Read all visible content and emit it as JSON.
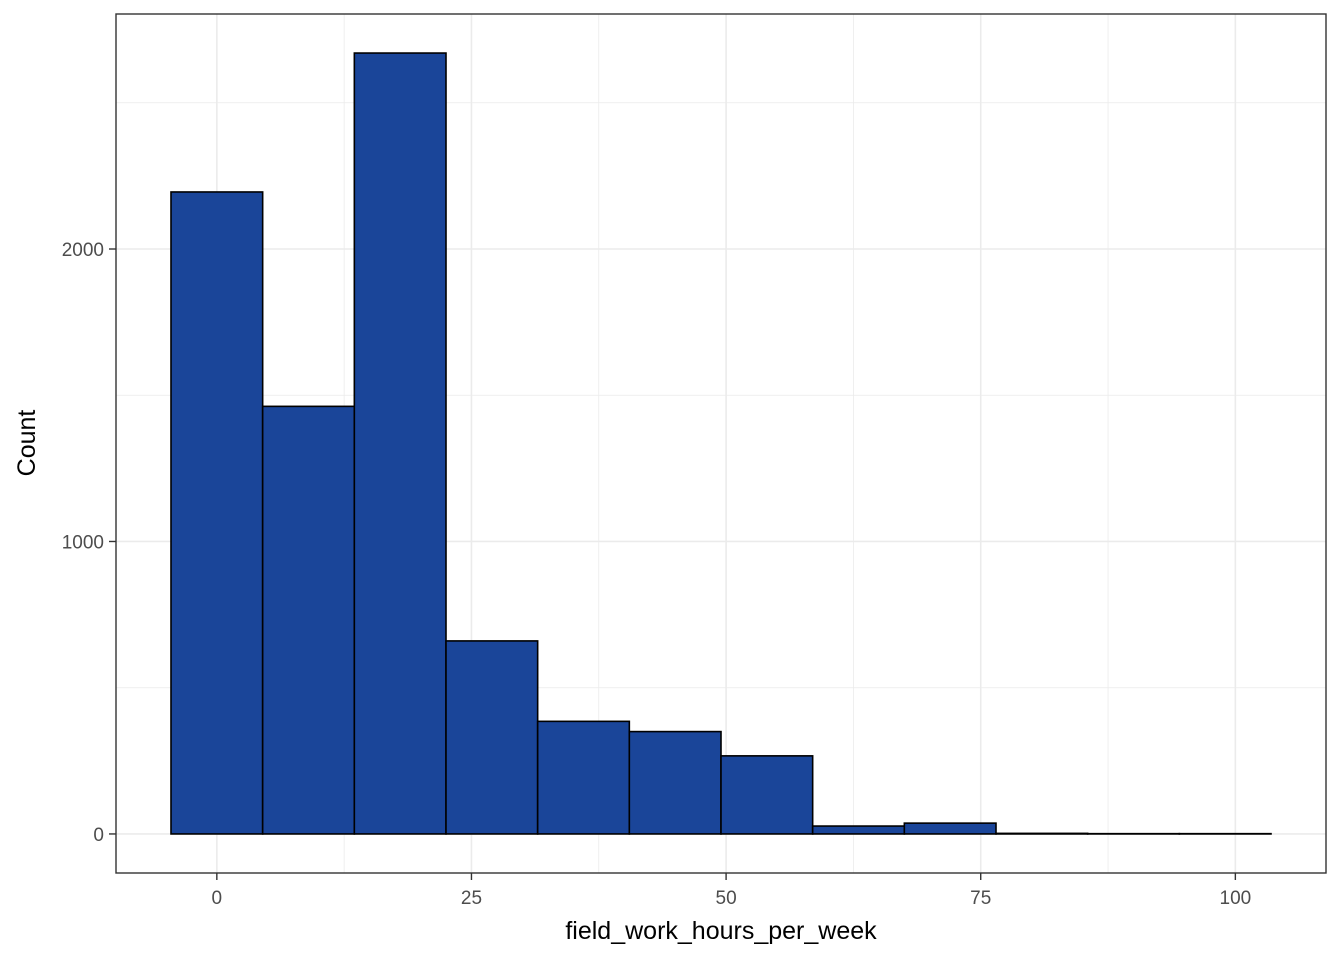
{
  "chart_data": {
    "type": "bar",
    "subtype": "histogram",
    "title": "",
    "xlabel": "field_work_hours_per_week",
    "ylabel": "Count",
    "bin_width": 9,
    "bins": [
      {
        "x0": -4.5,
        "x1": 4.5,
        "count": 2195
      },
      {
        "x0": 4.5,
        "x1": 13.5,
        "count": 1462
      },
      {
        "x0": 13.5,
        "x1": 22.5,
        "count": 2670
      },
      {
        "x0": 22.5,
        "x1": 31.5,
        "count": 660
      },
      {
        "x0": 31.5,
        "x1": 40.5,
        "count": 385
      },
      {
        "x0": 40.5,
        "x1": 49.5,
        "count": 350
      },
      {
        "x0": 49.5,
        "x1": 58.5,
        "count": 267
      },
      {
        "x0": 58.5,
        "x1": 67.5,
        "count": 27
      },
      {
        "x0": 67.5,
        "x1": 76.5,
        "count": 37
      },
      {
        "x0": 76.5,
        "x1": 85.5,
        "count": 2
      },
      {
        "x0": 85.5,
        "x1": 94.5,
        "count": 1
      },
      {
        "x0": 94.5,
        "x1": 103.5,
        "count": 1
      }
    ],
    "xlim": [
      -9.9,
      108.9
    ],
    "ylim": [
      -133.5,
      2803.5
    ],
    "x_ticks": [
      0,
      25,
      50,
      75,
      100
    ],
    "x_tick_labels": [
      "0",
      "25",
      "50",
      "75",
      "100"
    ],
    "y_ticks": [
      0,
      1000,
      2000
    ],
    "y_tick_labels": [
      "0",
      "1000",
      "2000"
    ],
    "x_minor_ticks": [
      12.5,
      37.5,
      62.5,
      87.5
    ],
    "y_minor_ticks": [
      500,
      1500,
      2500
    ],
    "grid": true,
    "fill_color": "#1a4599",
    "edge_color": "#000000",
    "grid_color": "#ebebeb",
    "panel_border_color": "#333333",
    "legend": "none"
  }
}
